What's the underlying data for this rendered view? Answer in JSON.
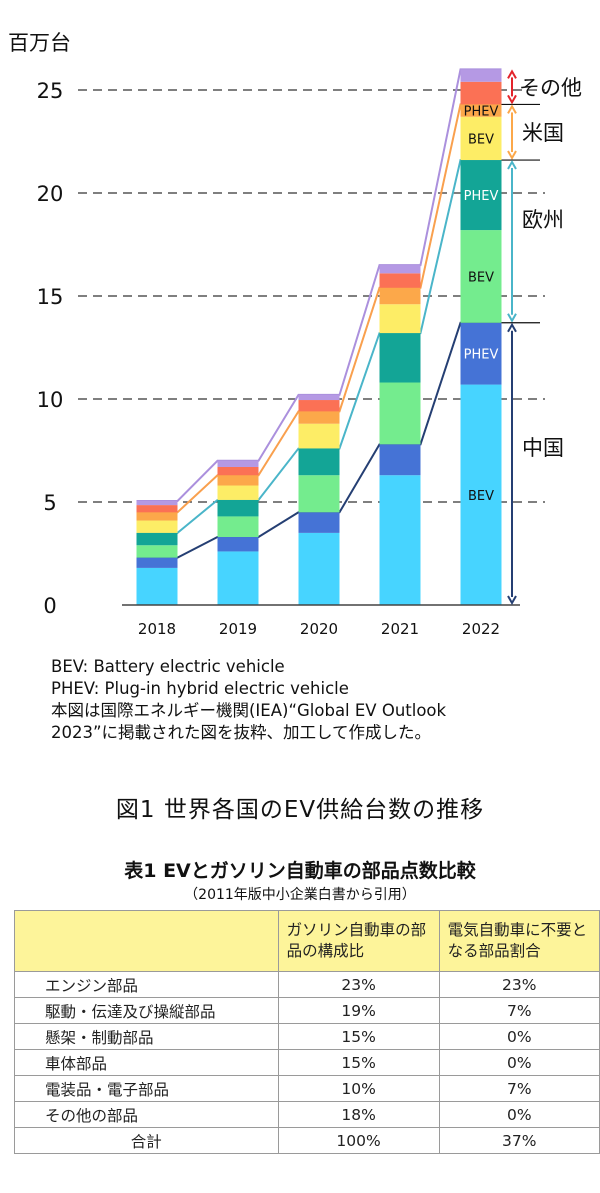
{
  "chart_data": {
    "type": "bar",
    "stacked": true,
    "ylabel": "百万台",
    "ylim": [
      0,
      26.5
    ],
    "yticks": [
      0,
      5,
      10,
      15,
      20,
      25
    ],
    "grid": "dashed",
    "categories": [
      "2018",
      "2019",
      "2020",
      "2021",
      "2022"
    ],
    "series": [
      {
        "group": "中国",
        "type": "BEV",
        "color": "#47d4ff",
        "values": [
          1.8,
          2.6,
          3.5,
          6.3,
          10.7
        ]
      },
      {
        "group": "中国",
        "type": "PHEV",
        "color": "#4573d6",
        "values": [
          0.5,
          0.7,
          1.0,
          1.5,
          3.0
        ]
      },
      {
        "group": "欧州",
        "type": "BEV",
        "color": "#74ec8e",
        "values": [
          0.6,
          1.0,
          1.8,
          3.0,
          4.5
        ]
      },
      {
        "group": "欧州",
        "type": "PHEV",
        "color": "#13a596",
        "values": [
          0.6,
          0.8,
          1.3,
          2.4,
          3.4
        ]
      },
      {
        "group": "米国",
        "type": "BEV",
        "color": "#fded66",
        "values": [
          0.6,
          0.7,
          1.2,
          1.4,
          2.1
        ]
      },
      {
        "group": "米国",
        "type": "PHEV",
        "color": "#fca84a",
        "values": [
          0.4,
          0.5,
          0.6,
          0.8,
          0.6
        ]
      },
      {
        "group": "その他",
        "type": "BEV",
        "color": "#fb7155",
        "values": [
          0.35,
          0.4,
          0.55,
          0.7,
          1.1
        ]
      },
      {
        "group": "その他",
        "type": "PHEV",
        "color": "#b599e4",
        "values": [
          0.2,
          0.3,
          0.25,
          0.4,
          0.6
        ]
      }
    ],
    "bar_labels": [
      {
        "text": "BEV",
        "series": 0
      },
      {
        "text": "PHEV",
        "series": 1
      },
      {
        "text": "BEV",
        "series": 2
      },
      {
        "text": "PHEV",
        "series": 3
      },
      {
        "text": "BEV",
        "series": 4
      },
      {
        "text": "PHEV",
        "series": 5
      }
    ],
    "region_labels": [
      {
        "text": "その他",
        "from": 6,
        "to": 7,
        "color": "#e3242b"
      },
      {
        "text": "米国",
        "from": 4,
        "to": 5,
        "color": "#fca84a"
      },
      {
        "text": "欧州",
        "from": 2,
        "to": 3,
        "color": "#4ab5c9"
      },
      {
        "text": "中国",
        "from": 0,
        "to": 1,
        "color": "#253f73"
      }
    ]
  },
  "notes": [
    "BEV: Battery electric vehicle",
    "PHEV: Plug-in hybrid electric vehicle",
    "本図は国際エネルギー機関(IEA)“Global EV Outlook",
    "2023”に掲載された図を抜粋、加工して作成した。"
  ],
  "figure_caption": "図1 世界各国のEV供給台数の推移",
  "table": {
    "title": "表1 EVとガソリン自動車の部品点数比較",
    "subtitle": "（2011年版中小企業白書から引用）",
    "headers": [
      "",
      "ガソリン自動車の部品の構成比",
      "電気自動車に不要となる部品割合"
    ],
    "rows": [
      [
        "エンジン部品",
        "23%",
        "23%"
      ],
      [
        "駆動・伝達及び操縦部品",
        "19%",
        "7%"
      ],
      [
        "懸架・制動部品",
        "15%",
        "0%"
      ],
      [
        "車体部品",
        "15%",
        "0%"
      ],
      [
        "電装品・電子部品",
        "10%",
        "7%"
      ],
      [
        "その他の部品",
        "18%",
        "0%"
      ],
      [
        "合計",
        "100%",
        "37%"
      ]
    ]
  }
}
